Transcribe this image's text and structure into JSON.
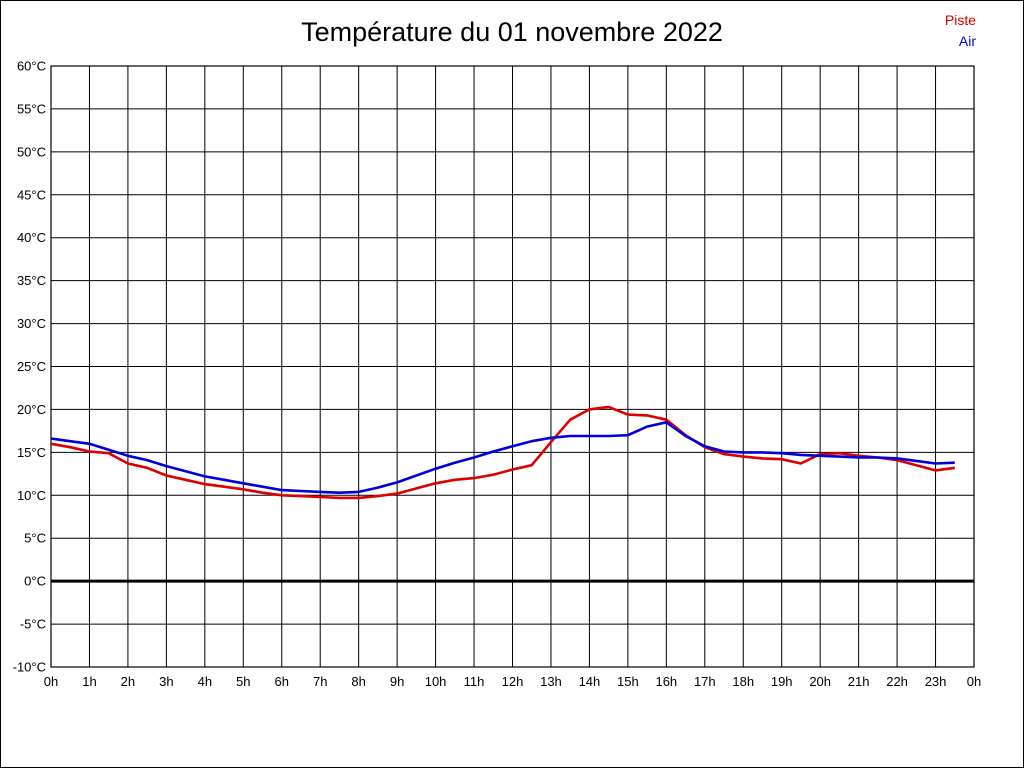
{
  "chart_data": {
    "type": "line",
    "title": "Température du 01 novembre 2022",
    "xlabel": "",
    "ylabel": "",
    "xlim": [
      0,
      24
    ],
    "ylim": [
      -10,
      60
    ],
    "y_tick_step": 5,
    "grid": true,
    "zero_line_at": 0,
    "legend_position": "top-right",
    "x_tick_labels": [
      "0h",
      "1h",
      "2h",
      "3h",
      "4h",
      "5h",
      "6h",
      "7h",
      "8h",
      "9h",
      "10h",
      "11h",
      "12h",
      "13h",
      "14h",
      "15h",
      "16h",
      "17h",
      "18h",
      "19h",
      "20h",
      "21h",
      "22h",
      "23h",
      "0h"
    ],
    "y_tick_labels": [
      "60°C",
      "55°C",
      "50°C",
      "45°C",
      "40°C",
      "35°C",
      "30°C",
      "25°C",
      "20°C",
      "15°C",
      "10°C",
      "5°C",
      "0°C",
      "-5°C",
      "-10°C"
    ],
    "y_ticks": [
      60,
      55,
      50,
      45,
      40,
      35,
      30,
      25,
      20,
      15,
      10,
      5,
      0,
      -5,
      -10
    ],
    "x": [
      0,
      0.5,
      1,
      1.5,
      2,
      2.5,
      3,
      3.5,
      4,
      4.5,
      5,
      5.5,
      6,
      6.5,
      7,
      7.5,
      8,
      8.5,
      9,
      9.5,
      10,
      10.5,
      11,
      11.5,
      12,
      12.5,
      13,
      13.5,
      14,
      14.5,
      15,
      15.5,
      16,
      16.5,
      17,
      17.5,
      18,
      18.5,
      19,
      19.5,
      20,
      20.5,
      21,
      21.5,
      22,
      22.5,
      23,
      23.5
    ],
    "series": [
      {
        "name": "Piste",
        "color": "#dd0000",
        "values": [
          16.0,
          15.6,
          15.1,
          14.9,
          13.7,
          13.2,
          12.3,
          11.8,
          11.3,
          11.0,
          10.7,
          10.3,
          10.0,
          9.9,
          9.8,
          9.7,
          9.7,
          9.9,
          10.2,
          10.8,
          11.4,
          11.8,
          12.0,
          12.4,
          13.0,
          13.5,
          16.2,
          18.8,
          20.0,
          20.3,
          19.4,
          19.3,
          18.8,
          17.0,
          15.6,
          14.8,
          14.5,
          14.3,
          14.2,
          13.7,
          14.8,
          14.9,
          14.6,
          14.4,
          14.1,
          13.5,
          12.9,
          13.2
        ]
      },
      {
        "name": "Air",
        "color": "#0000dd",
        "values": [
          16.6,
          16.3,
          16.0,
          15.3,
          14.6,
          14.1,
          13.4,
          12.8,
          12.2,
          11.8,
          11.4,
          11.0,
          10.6,
          10.5,
          10.4,
          10.3,
          10.4,
          10.9,
          11.5,
          12.3,
          13.1,
          13.8,
          14.4,
          15.1,
          15.7,
          16.3,
          16.7,
          16.9,
          16.9,
          16.9,
          17.0,
          18.0,
          18.5,
          16.9,
          15.7,
          15.1,
          15.0,
          15.0,
          14.9,
          14.7,
          14.6,
          14.5,
          14.4,
          14.4,
          14.3,
          14.0,
          13.7,
          13.8
        ]
      }
    ]
  }
}
